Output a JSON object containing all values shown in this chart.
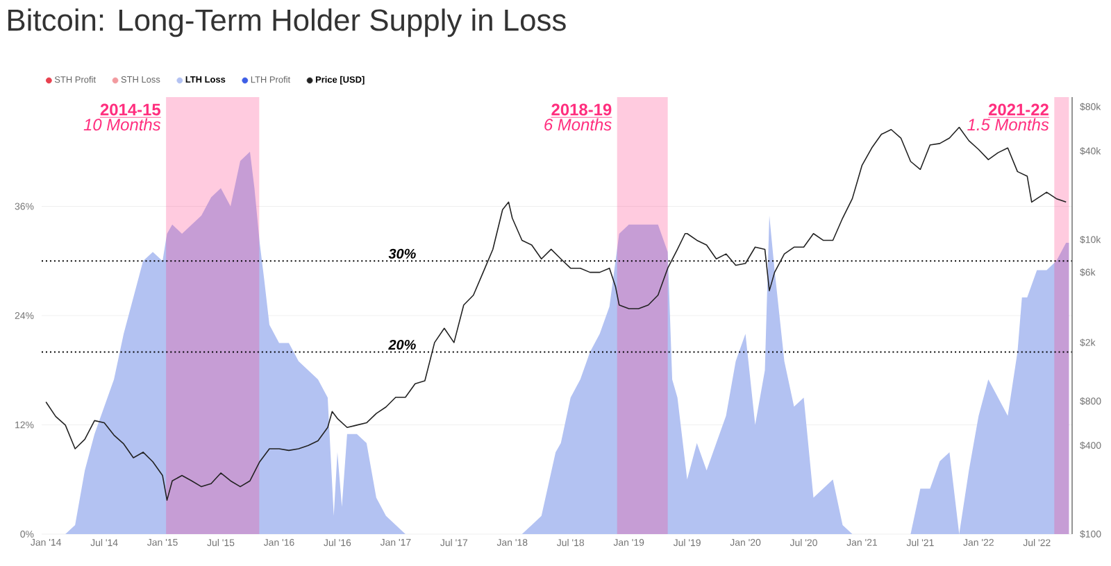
{
  "chart_data": {
    "type": "area",
    "title": "Bitcoin: Long-Term Holder Supply in Loss",
    "legend": "top left",
    "grid": "y",
    "log": "y2",
    "xlim": [
      "2013-12-18",
      "2022-10-20"
    ],
    "ylim": [
      0,
      48
    ],
    "y2lim": [
      100,
      93000
    ],
    "xticks": [
      {
        "value": "2014-01",
        "label": "Jan '14"
      },
      {
        "value": "2014-07",
        "label": "Jul '14"
      },
      {
        "value": "2015-01",
        "label": "Jan '15"
      },
      {
        "value": "2015-07",
        "label": "Jul '15"
      },
      {
        "value": "2016-01",
        "label": "Jan '16"
      },
      {
        "value": "2016-07",
        "label": "Jul '16"
      },
      {
        "value": "2017-01",
        "label": "Jan '17"
      },
      {
        "value": "2017-07",
        "label": "Jul '17"
      },
      {
        "value": "2018-01",
        "label": "Jan '18"
      },
      {
        "value": "2018-07",
        "label": "Jul '18"
      },
      {
        "value": "2019-01",
        "label": "Jan '19"
      },
      {
        "value": "2019-07",
        "label": "Jul '19"
      },
      {
        "value": "2020-01",
        "label": "Jan '20"
      },
      {
        "value": "2020-07",
        "label": "Jul '20"
      },
      {
        "value": "2021-01",
        "label": "Jan '21"
      },
      {
        "value": "2021-07",
        "label": "Jul '21"
      },
      {
        "value": "2022-01",
        "label": "Jan '22"
      },
      {
        "value": "2022-07",
        "label": "Jul '22"
      }
    ],
    "yticks": [
      {
        "value": 0,
        "label": "0%"
      },
      {
        "value": 12,
        "label": "12%"
      },
      {
        "value": 24,
        "label": "24%"
      },
      {
        "value": 36,
        "label": "36%"
      }
    ],
    "y2ticks": [
      {
        "value": 100,
        "label": "$100"
      },
      {
        "value": 400,
        "label": "$400"
      },
      {
        "value": 800,
        "label": "$800"
      },
      {
        "value": 2000,
        "label": "$2k"
      },
      {
        "value": 6000,
        "label": "$6k"
      },
      {
        "value": 10000,
        "label": "$10k"
      },
      {
        "value": 40000,
        "label": "$40k"
      },
      {
        "value": 80000,
        "label": "$80k"
      }
    ],
    "ref_lines": [
      {
        "axis": "y",
        "value": 30,
        "label": "30%",
        "color": "#000000",
        "line_style": "dotted"
      },
      {
        "axis": "y",
        "value": 20,
        "label": "20%",
        "color": "#000000",
        "line_style": "dotted"
      }
    ],
    "bands": [
      {
        "axis": "x",
        "from": "2015-01-12",
        "to": "2015-10-30",
        "label": "2014-15",
        "color": "#ff2e7e"
      },
      {
        "axis": "x",
        "from": "2018-11-25",
        "to": "2019-05-01",
        "label": "2018-19",
        "color": "#ff2e7e"
      },
      {
        "axis": "x",
        "from": "2022-08-25",
        "to": "2022-10-10",
        "label": "2021-22",
        "color": "#ff2e7e"
      }
    ],
    "annotations": [
      {
        "text": "10 Months",
        "x": "2015-01-12",
        "y": 45
      },
      {
        "text": "6 Months",
        "x": "2018-11-25",
        "y": 45
      },
      {
        "text": "1.5 Months",
        "x": "2022-08-25",
        "y": 45
      }
    ],
    "series": [
      {
        "name": "STH Profit",
        "color": "#e8414f"
      },
      {
        "name": "STH Loss",
        "color": "#f29a9f"
      },
      {
        "name": "LTH Loss",
        "color": "#b3c2f2",
        "x": [
          "2014-01",
          "2014-02",
          "2014-03",
          "2014-04",
          "2014-05",
          "2014-06",
          "2014-07",
          "2014-08",
          "2014-09",
          "2014-10",
          "2014-11",
          "2014-12",
          "2015-01",
          "2015-01-15",
          "2015-02",
          "2015-03",
          "2015-04",
          "2015-05",
          "2015-06",
          "2015-07",
          "2015-08",
          "2015-09",
          "2015-10",
          "2015-10-15",
          "2015-11",
          "2015-11-15",
          "2015-12",
          "2016-01",
          "2016-02",
          "2016-03",
          "2016-04",
          "2016-05",
          "2016-06",
          "2016-06-20",
          "2016-07",
          "2016-07-15",
          "2016-08",
          "2016-09",
          "2016-10",
          "2016-11",
          "2016-12",
          "2017-01",
          "2017-02",
          "2017-03",
          "2018-02",
          "2018-03",
          "2018-04",
          "2018-05-15",
          "2018-06",
          "2018-07",
          "2018-08",
          "2018-09",
          "2018-10",
          "2018-11",
          "2018-12",
          "2019-01",
          "2019-02",
          "2019-03",
          "2019-04",
          "2019-05",
          "2019-05-15",
          "2019-06",
          "2019-07",
          "2019-08",
          "2019-09",
          "2019-10",
          "2019-11",
          "2019-12",
          "2020-01",
          "2020-02",
          "2020-03",
          "2020-03-15",
          "2020-04",
          "2020-05",
          "2020-06",
          "2020-07",
          "2020-08",
          "2020-09",
          "2020-10",
          "2020-11",
          "2020-12",
          "2021-06",
          "2021-07",
          "2021-08",
          "2021-09",
          "2021-10",
          "2021-11",
          "2021-12",
          "2022-01",
          "2022-02",
          "2022-03",
          "2022-04",
          "2022-05",
          "2022-05-15",
          "2022-06",
          "2022-07",
          "2022-08",
          "2022-09",
          "2022-10",
          "2022-10-10"
        ],
        "values": [
          0,
          0,
          0,
          1,
          7,
          11,
          14,
          17,
          22,
          26,
          30,
          31,
          30,
          33,
          34,
          33,
          34,
          35,
          37,
          38,
          36,
          41,
          42,
          38,
          32,
          28,
          23,
          21,
          21,
          19,
          18,
          17,
          15,
          2,
          9,
          3,
          11,
          11,
          10,
          4,
          2,
          1,
          0,
          0,
          0,
          1,
          2,
          9,
          10,
          15,
          17,
          20,
          22,
          25,
          33,
          34,
          34,
          34,
          34,
          31,
          17,
          15,
          6,
          10,
          7,
          10,
          13,
          19,
          22,
          12,
          18,
          35,
          29,
          19,
          14,
          15,
          4,
          5,
          6,
          1,
          0,
          0,
          5,
          5,
          8,
          9,
          0,
          7,
          13,
          17,
          15,
          13,
          20,
          26,
          26,
          29,
          29,
          30,
          32,
          32
        ]
      },
      {
        "name": "LTH Profit",
        "color": "#3d5ee6"
      },
      {
        "name": "Price [USD]",
        "color": "#222222",
        "type": "line",
        "axis": "y2",
        "x": [
          "2014-01",
          "2014-02",
          "2014-03",
          "2014-04",
          "2014-05",
          "2014-06",
          "2014-07",
          "2014-08",
          "2014-09",
          "2014-10",
          "2014-11",
          "2014-12",
          "2015-01",
          "2015-01-15",
          "2015-02",
          "2015-03",
          "2015-04",
          "2015-05",
          "2015-06",
          "2015-07",
          "2015-08",
          "2015-09",
          "2015-10",
          "2015-11",
          "2015-12",
          "2016-01",
          "2016-02",
          "2016-03",
          "2016-04",
          "2016-05",
          "2016-06",
          "2016-06-15",
          "2016-07",
          "2016-08",
          "2016-09",
          "2016-10",
          "2016-11",
          "2016-12",
          "2017-01",
          "2017-02",
          "2017-03",
          "2017-04",
          "2017-05",
          "2017-06",
          "2017-07",
          "2017-08",
          "2017-09",
          "2017-10",
          "2017-11",
          "2017-12",
          "2017-12-20",
          "2018-01",
          "2018-02",
          "2018-03",
          "2018-04",
          "2018-05",
          "2018-06",
          "2018-07",
          "2018-08",
          "2018-09",
          "2018-10",
          "2018-11",
          "2018-11-20",
          "2018-12",
          "2019-01",
          "2019-02",
          "2019-03",
          "2019-04",
          "2019-05",
          "2019-06",
          "2019-06-25",
          "2019-07",
          "2019-08",
          "2019-09",
          "2019-10",
          "2019-11",
          "2019-12",
          "2020-01",
          "2020-02",
          "2020-03",
          "2020-03-15",
          "2020-04",
          "2020-05",
          "2020-06",
          "2020-07",
          "2020-08",
          "2020-09",
          "2020-10",
          "2020-11",
          "2020-12",
          "2021-01",
          "2021-02",
          "2021-03",
          "2021-04",
          "2021-05",
          "2021-06",
          "2021-07",
          "2021-08",
          "2021-09",
          "2021-10",
          "2021-11",
          "2021-12",
          "2022-01",
          "2022-02",
          "2022-03",
          "2022-04",
          "2022-05",
          "2022-06",
          "2022-06-15",
          "2022-07",
          "2022-08",
          "2022-09",
          "2022-10"
        ],
        "values": [
          790,
          630,
          550,
          380,
          440,
          590,
          570,
          470,
          410,
          330,
          360,
          310,
          250,
          170,
          230,
          250,
          230,
          210,
          220,
          260,
          230,
          210,
          230,
          310,
          380,
          380,
          370,
          380,
          400,
          430,
          530,
          680,
          610,
          530,
          550,
          570,
          660,
          730,
          850,
          850,
          1050,
          1100,
          2000,
          2500,
          2000,
          3600,
          4200,
          6000,
          8600,
          16000,
          18000,
          14000,
          9900,
          9200,
          7400,
          8600,
          7400,
          6400,
          6400,
          6000,
          6000,
          6400,
          4800,
          3600,
          3400,
          3400,
          3600,
          4200,
          6400,
          8600,
          11000,
          11000,
          9900,
          9200,
          7400,
          8000,
          6700,
          6900,
          8900,
          8600,
          4500,
          6000,
          8000,
          8900,
          8900,
          11000,
          9900,
          9900,
          14000,
          19000,
          32000,
          42000,
          52000,
          56000,
          49000,
          34000,
          30000,
          44000,
          45000,
          49000,
          58000,
          47000,
          41000,
          35000,
          39000,
          42000,
          29000,
          27000,
          18000,
          19000,
          21000,
          19000,
          18000
        ]
      }
    ]
  }
}
